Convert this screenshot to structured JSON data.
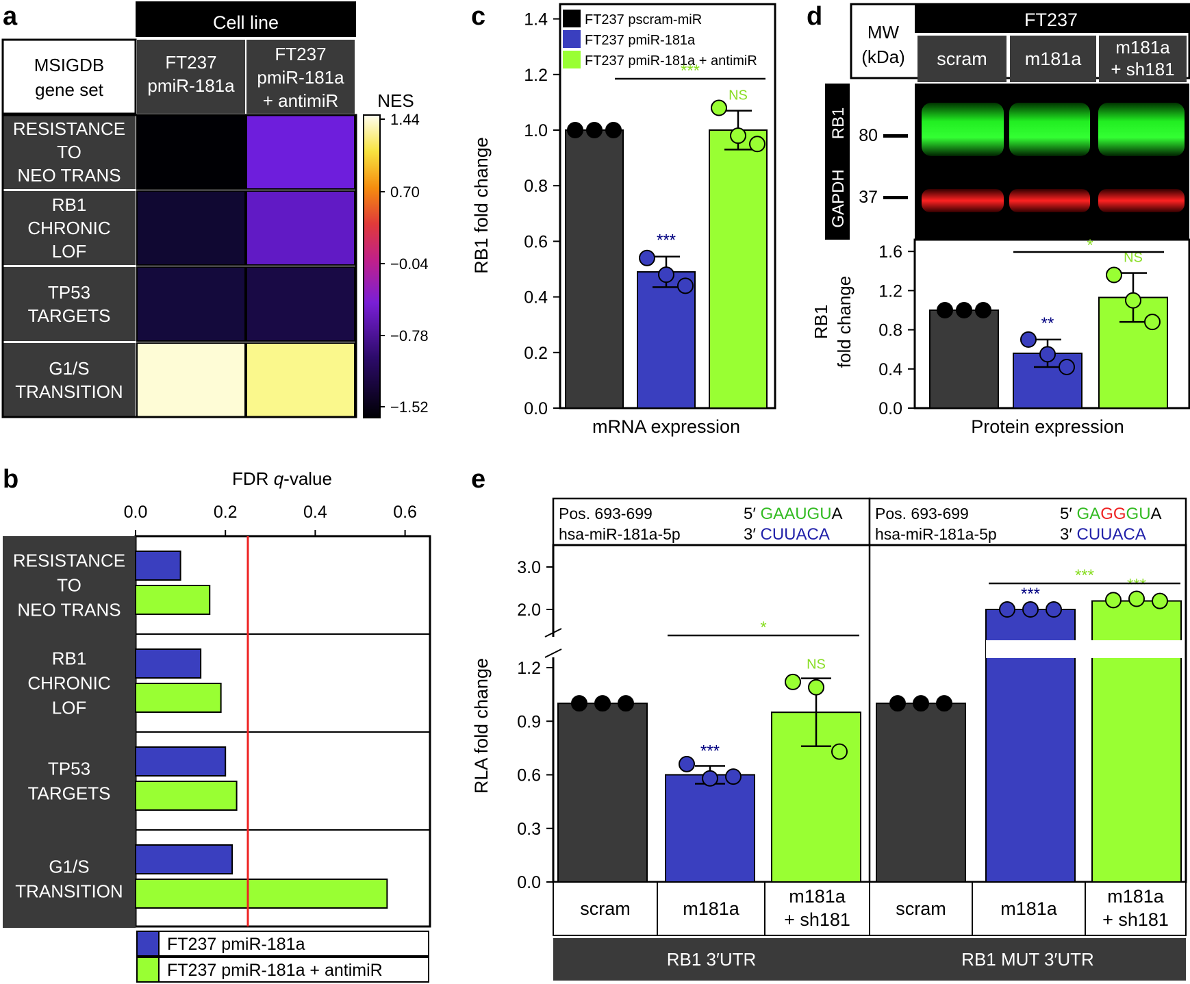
{
  "colors": {
    "dark": "#3a3a3a",
    "black": "#000000",
    "blue": "#3a3fbf",
    "navy": "#000080",
    "green": "#99ff33",
    "lightgreen": "#88dd22",
    "red": "#ee2222",
    "white": "#ffffff",
    "seqGreen": "#33bb22",
    "seqBlue": "#2222aa"
  },
  "panels": {
    "a": "a",
    "b": "b",
    "c": "c",
    "d": "d",
    "e": "e"
  },
  "chart_data": [
    {
      "id": "a",
      "type": "heatmap",
      "column_group_header": "Cell line",
      "row_header": "MSIGDB gene set",
      "columns": [
        "FT237 pmiR-181a",
        "FT237 pmiR-181a + antimiR"
      ],
      "rows": [
        "RESISTANCE TO NEO TRANS",
        "RB1 CHRONIC LOF",
        "TP53 TARGETS",
        "G1/S TRANSITION"
      ],
      "values": [
        [
          -1.52,
          -0.95
        ],
        [
          -1.38,
          -0.98
        ],
        [
          -1.35,
          -1.3
        ],
        [
          1.35,
          1.1
        ]
      ],
      "colorbar": {
        "title": "NES",
        "ticks": [
          "1.44",
          "0.70",
          "−0.04",
          "−0.78",
          "−1.52"
        ],
        "range": [
          -1.52,
          1.44
        ],
        "colormap": "inferno-like"
      }
    },
    {
      "id": "b",
      "type": "bar",
      "orientation": "horizontal",
      "xlabel_prefix": "FDR ",
      "xlabel_italic": "q",
      "xlabel_suffix": "-value",
      "xticks": [
        "0.0",
        "0.2",
        "0.4",
        "0.6"
      ],
      "xlim": [
        0,
        0.65
      ],
      "threshold": 0.25,
      "categories": [
        "RESISTANCE TO NEO TRANS",
        "RB1 CHRONIC LOF",
        "TP53 TARGETS",
        "G1/S TRANSITION"
      ],
      "series": [
        {
          "name": "FT237 pmiR-181a",
          "values": [
            0.1,
            0.145,
            0.2,
            0.215
          ]
        },
        {
          "name": "FT237 pmiR-181a + antimiR",
          "values": [
            0.165,
            0.19,
            0.225,
            0.56
          ]
        }
      ]
    },
    {
      "id": "c",
      "type": "bar",
      "ylabel": "RB1 fold change",
      "xlabel": "mRNA expression",
      "ylim": [
        0,
        1.45
      ],
      "yticks": [
        "0.0",
        "0.2",
        "0.4",
        "0.6",
        "0.8",
        "1.0",
        "1.2",
        "1.4"
      ],
      "series": [
        {
          "name": "FT237 pscram-miR",
          "value": 1.0,
          "error": 0,
          "points": [
            1.0,
            1.0,
            1.0
          ],
          "annotation": ""
        },
        {
          "name": "FT237 pmiR-181a",
          "value": 0.49,
          "error": 0.055,
          "points": [
            0.54,
            0.48,
            0.44
          ],
          "annotation": "***"
        },
        {
          "name": "FT237 pmiR-181a + antimiR",
          "value": 1.0,
          "error": 0.07,
          "points": [
            1.08,
            0.98,
            0.95
          ],
          "annotation": "NS"
        }
      ],
      "bracket_annotation": "***"
    },
    {
      "id": "d",
      "type": "bar",
      "blot_title": "FT237",
      "mw_label": "MW (kDa)",
      "lanes": [
        "scram",
        "m181a",
        "m181a + sh181"
      ],
      "blot_rows": [
        "RB1",
        "GAPDH"
      ],
      "mw_markers": [
        "80",
        "37"
      ],
      "ylabel_line1": "RB1",
      "ylabel_line2": "fold change",
      "xlabel": "Protein expression",
      "ylim": [
        0,
        1.75
      ],
      "yticks": [
        "0.0",
        "0.4",
        "0.8",
        "1.2",
        "1.6"
      ],
      "series": [
        {
          "name": "scram",
          "value": 1.0,
          "error": 0,
          "points": [
            1.0,
            1.0,
            1.0
          ],
          "annotation": ""
        },
        {
          "name": "m181a",
          "value": 0.56,
          "error": 0.14,
          "points": [
            0.7,
            0.55,
            0.42
          ],
          "annotation": "**"
        },
        {
          "name": "m181a + sh181",
          "value": 1.13,
          "error": 0.25,
          "points": [
            1.36,
            1.1,
            0.88
          ],
          "annotation": "NS"
        }
      ],
      "bracket_annotation": "*"
    },
    {
      "id": "e",
      "type": "bar",
      "ylabel": "RLA fold change",
      "yticks_lower": [
        "0.0",
        "0.3",
        "0.6",
        "0.9",
        "1.2"
      ],
      "yticks_upper": [
        "2.0",
        "3.0"
      ],
      "ylim_lower": [
        0,
        1.3
      ],
      "ylim_upper": [
        1.6,
        3.2
      ],
      "sequence_boxes": [
        {
          "position": "Pos. 693-699",
          "mirna": "hsa-miR-181a-5p",
          "utr_prefix": "5′ ",
          "utr_parts": [
            {
              "text": "GAAUGU",
              "color": "green"
            },
            {
              "text": "A",
              "color": "black"
            }
          ],
          "mir_prefix": "3′ ",
          "mir_seq": "CUUACA"
        },
        {
          "position": "Pos. 693-699",
          "mirna": "hsa-miR-181a-5p",
          "utr_prefix": "5′ ",
          "utr_parts": [
            {
              "text": "GA",
              "color": "green"
            },
            {
              "text": "GG",
              "color": "red"
            },
            {
              "text": "GU",
              "color": "green"
            },
            {
              "text": "A",
              "color": "black"
            }
          ],
          "mir_prefix": "3′ ",
          "mir_seq": "CUUACA"
        }
      ],
      "groups": [
        {
          "name": "RB1 3′UTR",
          "bracket_annotation": "*",
          "bars": [
            {
              "label_line1": "scram",
              "label_line2": "",
              "value": 1.0,
              "error": 0,
              "points": [
                1.0,
                1.0,
                1.0
              ],
              "annotation": ""
            },
            {
              "label_line1": "m181a",
              "label_line2": "",
              "value": 0.6,
              "error": 0.05,
              "points": [
                0.66,
                0.58,
                0.59
              ],
              "annotation": "***"
            },
            {
              "label_line1": "m181a",
              "label_line2": "+ sh181",
              "value": 0.95,
              "error": 0.19,
              "points": [
                1.12,
                1.09,
                0.73
              ],
              "annotation": "NS"
            }
          ]
        },
        {
          "name": "RB1 MUT 3′UTR",
          "bracket_annotation": "***",
          "bars": [
            {
              "label_line1": "scram",
              "label_line2": "",
              "value": 1.0,
              "error": 0,
              "points": [
                1.0,
                1.0,
                1.0
              ],
              "annotation": ""
            },
            {
              "label_line1": "m181a",
              "label_line2": "",
              "value": 1.7,
              "error": 0.02,
              "points": [
                1.7,
                1.7,
                1.7
              ],
              "annotation": "***"
            },
            {
              "label_line1": "m181a",
              "label_line2": "+ sh181",
              "value": 1.9,
              "error": 0.03,
              "points": [
                1.92,
                1.95,
                1.9
              ],
              "annotation": "***"
            }
          ]
        }
      ]
    }
  ]
}
